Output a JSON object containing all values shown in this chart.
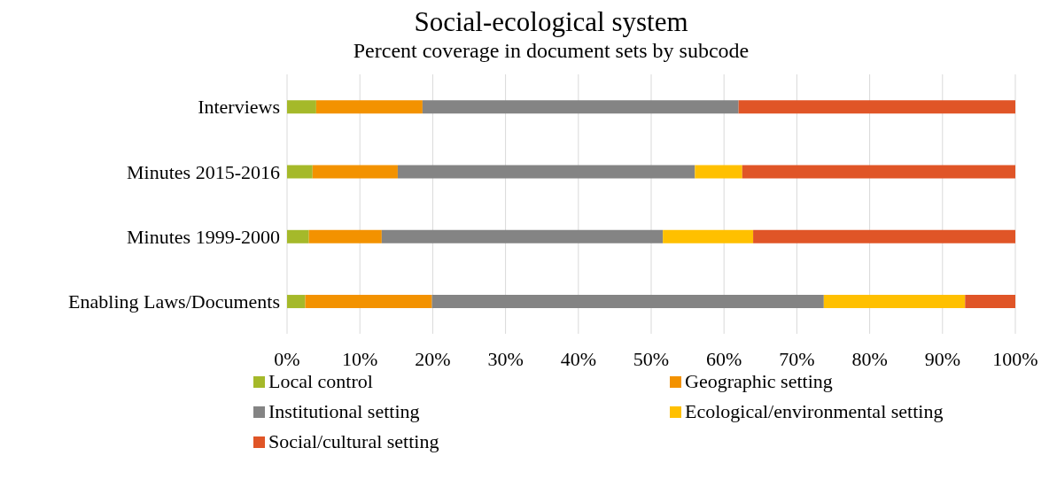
{
  "chart_data": {
    "type": "bar",
    "orientation": "horizontal",
    "stacked": true,
    "title": "Social-ecological system",
    "subtitle": "Percent coverage in document sets by subcode",
    "categories": [
      "Interviews",
      "Minutes 2015-2016",
      "Minutes 1999-2000",
      "Enabling Laws/Documents"
    ],
    "series": [
      {
        "name": "Local control",
        "color": "#a5b92a",
        "values": [
          4.0,
          3.5,
          3.0,
          2.5
        ]
      },
      {
        "name": "Geographic setting",
        "color": "#f39200",
        "values": [
          14.6,
          11.7,
          10.0,
          17.4
        ]
      },
      {
        "name": "Institutional setting",
        "color": "#848484",
        "values": [
          43.4,
          40.8,
          38.6,
          53.8
        ]
      },
      {
        "name": "Ecological/environmental setting",
        "color": "#ffc000",
        "values": [
          0,
          6.5,
          12.4,
          19.4
        ]
      },
      {
        "name": "Social/cultural setting",
        "color": "#e05527",
        "values": [
          38.0,
          37.5,
          36.0,
          6.9
        ]
      }
    ],
    "xlim": [
      0,
      100
    ],
    "xticks": [
      {
        "value": 0,
        "label": "0%"
      },
      {
        "value": 10,
        "label": "10%"
      },
      {
        "value": 20,
        "label": "20%"
      },
      {
        "value": 30,
        "label": "30%"
      },
      {
        "value": 40,
        "label": "40%"
      },
      {
        "value": 50,
        "label": "50%"
      },
      {
        "value": 60,
        "label": "60%"
      },
      {
        "value": 70,
        "label": "70%"
      },
      {
        "value": 80,
        "label": "80%"
      },
      {
        "value": 90,
        "label": "90%"
      },
      {
        "value": 100,
        "label": "100%"
      }
    ],
    "grid": "x",
    "legend": "bottom"
  }
}
